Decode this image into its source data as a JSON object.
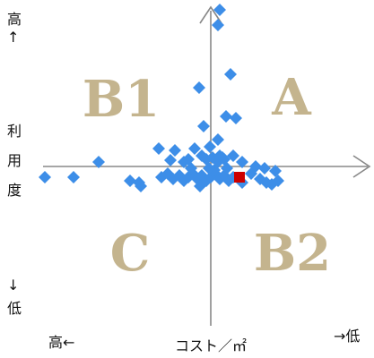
{
  "chart_data": {
    "type": "scatter",
    "xlabel": "コスト／㎡",
    "x_low_cost_label": "→低",
    "x_high_cost_label": "高←",
    "y_high_label": "高",
    "y_high_arrow": "↑",
    "y_label_chars": [
      "利",
      "用",
      "度"
    ],
    "y_low_arrow": "↓",
    "y_low_label": "低",
    "quadrant_labels": {
      "top_left": "B1",
      "top_right": "A",
      "bottom_left": "C",
      "bottom_right": "B2"
    },
    "xlim": [
      -185,
      180
    ],
    "ylim": [
      -178,
      180
    ],
    "grid": false,
    "colors": {
      "points": "#3d8ee8",
      "highlight": "#cc0000",
      "axis": "#888888",
      "quadrant": "#c4b48e"
    },
    "series": [
      {
        "marker": "diamond",
        "points": [
          [
            10,
            175
          ],
          [
            8,
            158
          ],
          [
            22,
            103
          ],
          [
            -13,
            88
          ],
          [
            17,
            56
          ],
          [
            28,
            54
          ],
          [
            -8,
            45
          ],
          [
            8,
            30
          ],
          [
            -58,
            20
          ],
          [
            -40,
            18
          ],
          [
            -18,
            20
          ],
          [
            -1,
            22
          ],
          [
            13,
            10
          ],
          [
            -125,
            5
          ],
          [
            -45,
            7
          ],
          [
            -30,
            5
          ],
          [
            -25,
            8
          ],
          [
            -10,
            12
          ],
          [
            -5,
            8
          ],
          [
            2,
            10
          ],
          [
            8,
            5
          ],
          [
            10,
            12
          ],
          [
            15,
            8
          ],
          [
            25,
            12
          ],
          [
            35,
            5
          ],
          [
            50,
            0
          ],
          [
            60,
            -2
          ],
          [
            72,
            -5
          ],
          [
            -185,
            -12
          ],
          [
            -153,
            -12
          ],
          [
            -90,
            -16
          ],
          [
            -80,
            -18
          ],
          [
            -55,
            -12
          ],
          [
            -48,
            -8
          ],
          [
            -42,
            -14
          ],
          [
            -35,
            -10
          ],
          [
            -30,
            -16
          ],
          [
            -25,
            -12
          ],
          [
            -20,
            -8
          ],
          [
            -15,
            -14
          ],
          [
            -10,
            -10
          ],
          [
            -5,
            -16
          ],
          [
            0,
            -12
          ],
          [
            5,
            -8
          ],
          [
            10,
            -14
          ],
          [
            15,
            -10
          ],
          [
            20,
            -16
          ],
          [
            25,
            -12
          ],
          [
            35,
            -18
          ],
          [
            45,
            -8
          ],
          [
            55,
            -14
          ],
          [
            62,
            -18
          ],
          [
            68,
            -20
          ],
          [
            75,
            -16
          ],
          [
            -78,
            -22
          ],
          [
            -12,
            -22
          ],
          [
            4,
            -4
          ],
          [
            -2,
            -2
          ],
          [
            18,
            -2
          ],
          [
            -22,
            -2
          ]
        ]
      },
      {
        "marker": "square",
        "points": [
          [
            32,
            -12
          ]
        ]
      }
    ]
  }
}
